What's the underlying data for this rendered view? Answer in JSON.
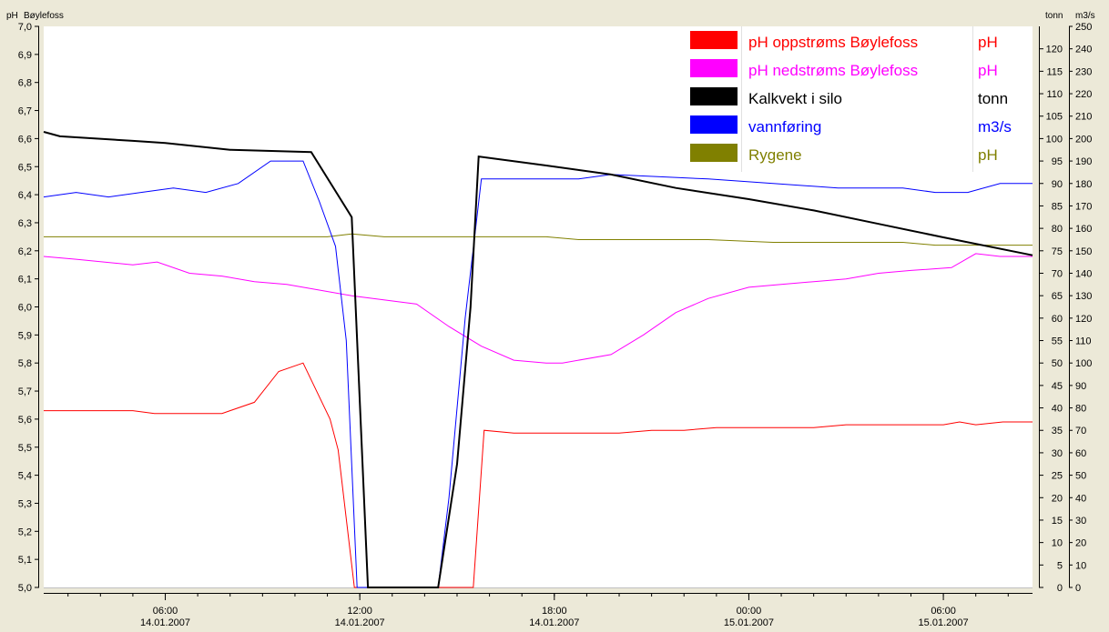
{
  "header": {
    "left_unit": "pH",
    "left_title": "Bøylefoss",
    "right_unit_1": "tonn",
    "right_unit_2": "m3/s"
  },
  "colors": {
    "background": "#ECE9D8",
    "plot": "#FFFFFF",
    "red": "#FF0000",
    "magenta": "#FF00FF",
    "black": "#000000",
    "blue": "#0000FF",
    "olive": "#808000"
  },
  "chart_data": {
    "type": "line",
    "axes": {
      "left": {
        "unit": "pH",
        "range": [
          5.0,
          7.0
        ],
        "step": 0.1,
        "ticks": [
          "5,0",
          "5,1",
          "5,2",
          "5,3",
          "5,4",
          "5,5",
          "5,6",
          "5,7",
          "5,8",
          "5,9",
          "6,0",
          "6,1",
          "6,2",
          "6,3",
          "6,4",
          "6,5",
          "6,6",
          "6,7",
          "6,8",
          "6,9",
          "7,0"
        ]
      },
      "right1": {
        "unit": "tonn",
        "range": [
          0,
          125
        ],
        "step": 5,
        "ticks": [
          "0",
          "5",
          "10",
          "15",
          "20",
          "25",
          "30",
          "35",
          "40",
          "45",
          "50",
          "55",
          "60",
          "65",
          "70",
          "75",
          "80",
          "85",
          "90",
          "95",
          "100",
          "105",
          "110",
          "115",
          "120"
        ]
      },
      "right2": {
        "unit": "m3/s",
        "range": [
          0,
          250
        ],
        "step": 10,
        "ticks": [
          "0",
          "10",
          "20",
          "30",
          "40",
          "50",
          "60",
          "70",
          "80",
          "90",
          "100",
          "110",
          "120",
          "130",
          "140",
          "150",
          "160",
          "170",
          "180",
          "190",
          "200",
          "210",
          "220",
          "230",
          "240",
          "250"
        ]
      },
      "x": {
        "range": [
          "14.01.2007 02:15",
          "15.01.2007 08:45"
        ],
        "ticks": [
          {
            "time": "06:00",
            "date": "14.01.2007"
          },
          {
            "time": "12:00",
            "date": "14.01.2007"
          },
          {
            "time": "18:00",
            "date": "14.01.2007"
          },
          {
            "time": "00:00",
            "date": "15.01.2007"
          },
          {
            "time": "06:00",
            "date": "15.01.2007"
          }
        ]
      }
    },
    "grid": false,
    "legend_position": "top-right",
    "series": [
      {
        "name": "pH oppstrøms Bøylefoss",
        "unit": "pH",
        "axis": "left",
        "color": "#FF0000",
        "points": [
          [
            "14.01.2007 02:15",
            5.63
          ],
          [
            "14.01.2007 05:00",
            5.63
          ],
          [
            "14.01.2007 05:40",
            5.62
          ],
          [
            "14.01.2007 07:45",
            5.62
          ],
          [
            "14.01.2007 08:45",
            5.66
          ],
          [
            "14.01.2007 09:30",
            5.77
          ],
          [
            "14.01.2007 10:15",
            5.8
          ],
          [
            "14.01.2007 11:05",
            5.6
          ],
          [
            "14.01.2007 11:20",
            5.49
          ],
          [
            "14.01.2007 11:50",
            5.0
          ],
          [
            "14.01.2007 15:30",
            5.0
          ],
          [
            "14.01.2007 15:50",
            5.56
          ],
          [
            "14.01.2007 16:45",
            5.55
          ],
          [
            "14.01.2007 20:00",
            5.55
          ],
          [
            "14.01.2007 21:00",
            5.56
          ],
          [
            "14.01.2007 22:00",
            5.56
          ],
          [
            "14.01.2007 23:00",
            5.57
          ],
          [
            "15.01.2007 02:00",
            5.57
          ],
          [
            "15.01.2007 03:00",
            5.58
          ],
          [
            "15.01.2007 06:00",
            5.58
          ],
          [
            "15.01.2007 06:30",
            5.59
          ],
          [
            "15.01.2007 07:00",
            5.58
          ],
          [
            "15.01.2007 07:50",
            5.59
          ],
          [
            "15.01.2007 08:45",
            5.59
          ]
        ]
      },
      {
        "name": "pH nedstrøms Bøylefoss",
        "unit": "pH",
        "axis": "left",
        "color": "#FF00FF",
        "points": [
          [
            "14.01.2007 02:15",
            6.18
          ],
          [
            "14.01.2007 03:15",
            6.17
          ],
          [
            "14.01.2007 05:00",
            6.15
          ],
          [
            "14.01.2007 05:45",
            6.16
          ],
          [
            "14.01.2007 06:45",
            6.12
          ],
          [
            "14.01.2007 07:45",
            6.11
          ],
          [
            "14.01.2007 08:45",
            6.09
          ],
          [
            "14.01.2007 09:45",
            6.08
          ],
          [
            "14.01.2007 10:45",
            6.06
          ],
          [
            "14.01.2007 11:45",
            6.04
          ],
          [
            "14.01.2007 13:45",
            6.01
          ],
          [
            "14.01.2007 14:45",
            5.93
          ],
          [
            "14.01.2007 15:45",
            5.86
          ],
          [
            "14.01.2007 16:45",
            5.81
          ],
          [
            "14.01.2007 17:45",
            5.8
          ],
          [
            "14.01.2007 18:15",
            5.8
          ],
          [
            "14.01.2007 19:45",
            5.83
          ],
          [
            "14.01.2007 20:45",
            5.9
          ],
          [
            "14.01.2007 21:45",
            5.98
          ],
          [
            "14.01.2007 22:45",
            6.03
          ],
          [
            "15.01.2007 00:00",
            6.07
          ],
          [
            "15.01.2007 01:00",
            6.08
          ],
          [
            "15.01.2007 02:00",
            6.09
          ],
          [
            "15.01.2007 03:00",
            6.1
          ],
          [
            "15.01.2007 04:00",
            6.12
          ],
          [
            "15.01.2007 05:00",
            6.13
          ],
          [
            "15.01.2007 06:15",
            6.14
          ],
          [
            "15.01.2007 07:00",
            6.19
          ],
          [
            "15.01.2007 07:45",
            6.18
          ],
          [
            "15.01.2007 08:45",
            6.18
          ]
        ]
      },
      {
        "name": "Kalkvekt i silo",
        "unit": "tonn",
        "axis": "right1",
        "color": "#000000",
        "points": [
          [
            "14.01.2007 02:15",
            101.5
          ],
          [
            "14.01.2007 02:45",
            100.5
          ],
          [
            "14.01.2007 05:00",
            99.5
          ],
          [
            "14.01.2007 06:00",
            99.0
          ],
          [
            "14.01.2007 08:00",
            97.5
          ],
          [
            "14.01.2007 10:30",
            97.0
          ],
          [
            "14.01.2007 11:45",
            82.5
          ],
          [
            "14.01.2007 12:15",
            0
          ],
          [
            "14.01.2007 14:25",
            0
          ],
          [
            "14.01.2007 15:00",
            27.5
          ],
          [
            "14.01.2007 15:25",
            62.5
          ],
          [
            "14.01.2007 15:40",
            96.0
          ],
          [
            "14.01.2007 17:45",
            94.0
          ],
          [
            "14.01.2007 19:45",
            92.0
          ],
          [
            "14.01.2007 21:45",
            89.0
          ],
          [
            "15.01.2007 00:00",
            86.5
          ],
          [
            "15.01.2007 02:00",
            84.0
          ],
          [
            "15.01.2007 04:00",
            81.0
          ],
          [
            "15.01.2007 06:00",
            78.0
          ],
          [
            "15.01.2007 08:45",
            74.0
          ]
        ]
      },
      {
        "name": "vannføring",
        "unit": "m3/s",
        "axis": "right2",
        "color": "#0000FF",
        "points": [
          [
            "14.01.2007 02:15",
            174
          ],
          [
            "14.01.2007 03:15",
            176
          ],
          [
            "14.01.2007 04:15",
            174
          ],
          [
            "14.01.2007 05:15",
            176
          ],
          [
            "14.01.2007 06:15",
            178
          ],
          [
            "14.01.2007 07:15",
            176
          ],
          [
            "14.01.2007 08:15",
            180
          ],
          [
            "14.01.2007 09:15",
            190
          ],
          [
            "14.01.2007 10:15",
            190
          ],
          [
            "14.01.2007 10:45",
            172
          ],
          [
            "14.01.2007 11:15",
            152
          ],
          [
            "14.01.2007 11:35",
            110
          ],
          [
            "14.01.2007 11:55",
            0
          ],
          [
            "14.01.2007 14:25",
            0
          ],
          [
            "14.01.2007 14:45",
            40
          ],
          [
            "14.01.2007 15:15",
            120
          ],
          [
            "14.01.2007 15:45",
            182
          ],
          [
            "14.01.2007 18:45",
            182
          ],
          [
            "14.01.2007 19:45",
            184
          ],
          [
            "14.01.2007 22:45",
            182
          ],
          [
            "15.01.2007 00:45",
            180
          ],
          [
            "15.01.2007 02:45",
            178
          ],
          [
            "15.01.2007 04:45",
            178
          ],
          [
            "15.01.2007 05:45",
            176
          ],
          [
            "15.01.2007 06:45",
            176
          ],
          [
            "15.01.2007 07:45",
            180
          ],
          [
            "15.01.2007 08:45",
            180
          ]
        ]
      },
      {
        "name": "Rygene",
        "unit": "pH",
        "axis": "left",
        "color": "#808000",
        "points": [
          [
            "14.01.2007 02:15",
            6.25
          ],
          [
            "14.01.2007 11:00",
            6.25
          ],
          [
            "14.01.2007 11:45",
            6.26
          ],
          [
            "14.01.2007 12:45",
            6.25
          ],
          [
            "14.01.2007 17:45",
            6.25
          ],
          [
            "14.01.2007 18:45",
            6.24
          ],
          [
            "14.01.2007 22:45",
            6.24
          ],
          [
            "15.01.2007 00:45",
            6.23
          ],
          [
            "15.01.2007 04:45",
            6.23
          ],
          [
            "15.01.2007 05:45",
            6.22
          ],
          [
            "15.01.2007 08:45",
            6.22
          ]
        ]
      }
    ]
  }
}
